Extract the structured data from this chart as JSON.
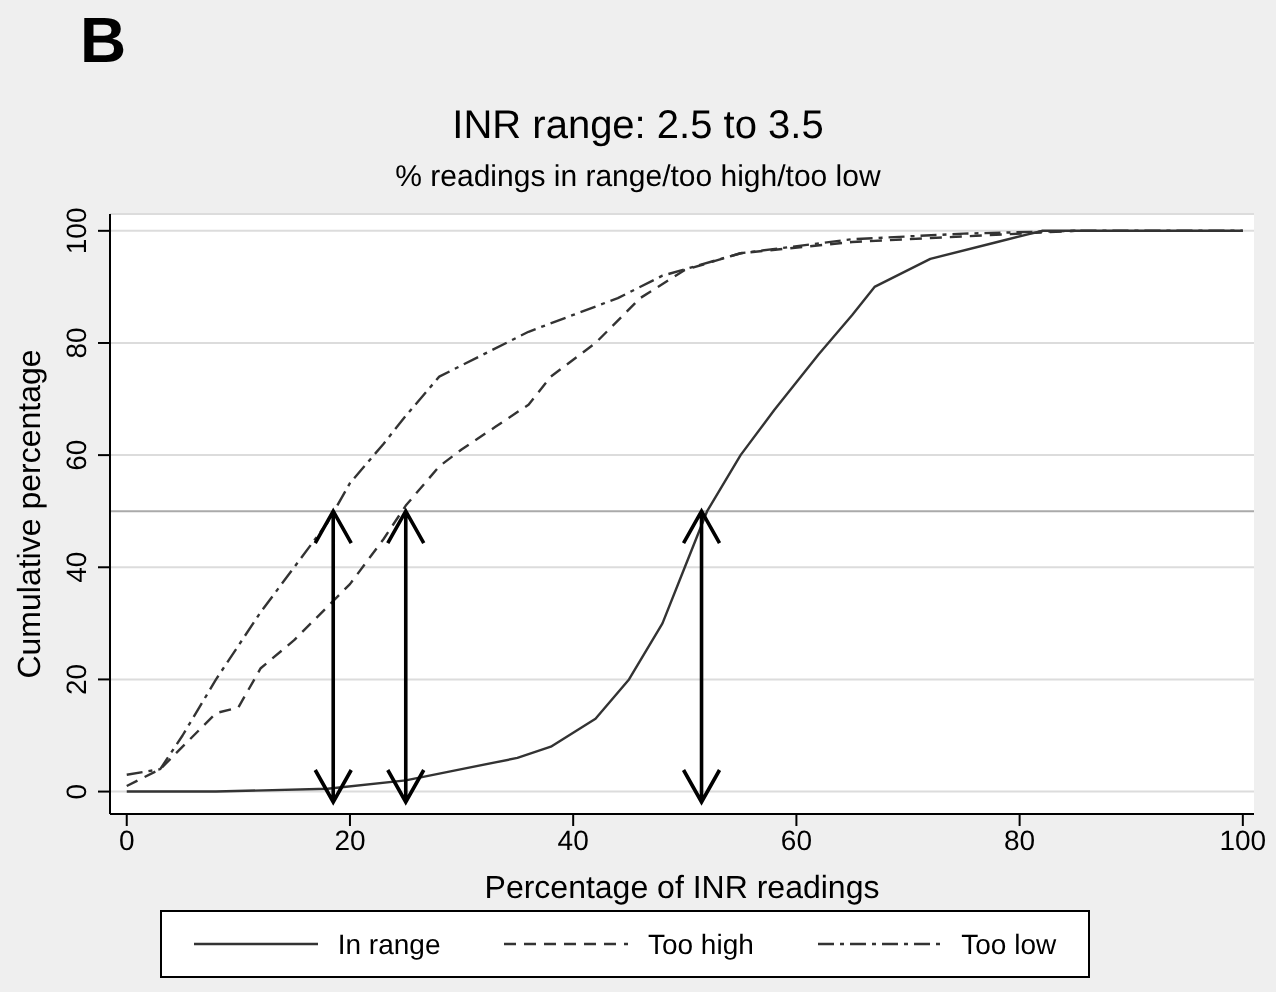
{
  "chart_data": {
    "type": "line",
    "title": "INR range: 2.5 to 3.5",
    "subtitle": "% readings in range/too high/too low",
    "xlabel": "Percentage of INR readings",
    "ylabel": "Cumulative percentage",
    "annotations": [
      "B"
    ],
    "series": [
      {
        "name": "In range",
        "color": "#333333",
        "line_style": "solid",
        "x": [
          0,
          8,
          18,
          25,
          30,
          35,
          38,
          42,
          45,
          48,
          50,
          52,
          55,
          58,
          62,
          65,
          67,
          72,
          78,
          82,
          100
        ],
        "values": [
          0,
          0,
          0.5,
          2,
          4,
          6,
          8,
          13,
          20,
          30,
          40,
          50,
          60,
          68,
          78,
          85,
          90,
          95,
          98,
          100,
          100
        ]
      },
      {
        "name": "Too high",
        "color": "#333333",
        "line_style": "dashed",
        "x": [
          0,
          3,
          6,
          8,
          10,
          12,
          15,
          18,
          20,
          23,
          25,
          28,
          30,
          33,
          36,
          38,
          42,
          46,
          50,
          55,
          65,
          75,
          85
        ],
        "values": [
          1,
          4,
          10,
          14,
          15,
          22,
          27,
          33,
          37,
          45,
          51,
          58,
          61,
          65,
          69,
          74,
          80,
          88,
          93,
          96,
          98,
          99,
          100
        ]
      },
      {
        "name": "Too low",
        "color": "#333333",
        "line_style": "dashdot",
        "x": [
          0,
          3,
          5,
          8,
          10,
          12,
          15,
          18,
          20,
          23,
          25,
          28,
          32,
          36,
          40,
          44,
          48,
          55,
          65,
          75,
          85,
          100
        ],
        "values": [
          3,
          4,
          10,
          20,
          26,
          32,
          40,
          48,
          55,
          62,
          67,
          74,
          78,
          82,
          85,
          88,
          92,
          96,
          98.5,
          99.5,
          100,
          100
        ]
      }
    ],
    "ref_lines": [
      {
        "axis": "y",
        "value": 50,
        "color": "#aaaaaa"
      },
      {
        "axis": "x",
        "value": 18.5,
        "color": "#000000"
      },
      {
        "axis": "x",
        "value": 25,
        "color": "#000000"
      },
      {
        "axis": "x",
        "value": 51.5,
        "color": "#000000"
      }
    ],
    "xlim": [
      -1.5,
      101
    ],
    "xticks": [
      0,
      20,
      40,
      60,
      80,
      100
    ],
    "ylim": [
      -4,
      103
    ],
    "yticks": [
      0,
      20,
      40,
      60,
      80,
      100
    ],
    "grid": "y",
    "legend": "bottom",
    "marker": "none"
  }
}
